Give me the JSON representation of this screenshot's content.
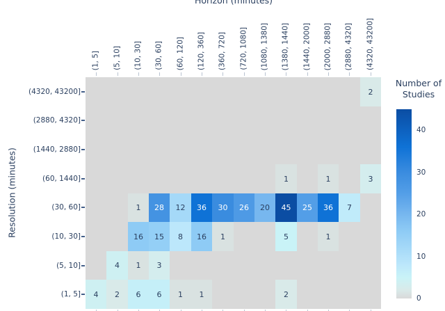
{
  "axes": {
    "x_title": "Horizon (minutes)",
    "y_title": "Resolution (minutes)"
  },
  "legend": {
    "title_line1": "Number of",
    "title_line2": "Studies",
    "ticks": [
      0,
      10,
      20,
      30,
      40
    ]
  },
  "colors": {
    "background": "#ffffff",
    "empty_cell": "#d9d9d9",
    "label_text": "#2a3f5f",
    "cell_text_dark": "#2a3f5f",
    "cell_text_light": "#ffffff",
    "heat_max": "#0b4da3"
  },
  "chart_data": {
    "type": "heatmap",
    "xlabel": "Horizon (minutes)",
    "ylabel": "Resolution (minutes)",
    "legend_title": "Number of Studies",
    "zmin": 0,
    "zmax": 45,
    "x_categories": [
      "(1, 5]",
      "(5, 10]",
      "(10, 30]",
      "(30, 60]",
      "(60, 120]",
      "(120, 360]",
      "(360, 720]",
      "(720, 1080]",
      "(1080, 1380]",
      "(1380, 1440]",
      "(1440, 2000]",
      "(2000, 2880]",
      "(2880, 4320]",
      "(4320, 43200]"
    ],
    "y_categories_top_to_bottom": [
      "(4320, 43200]",
      "(2880, 4320]",
      "(1440, 2880]",
      "(60, 1440]",
      "(30, 60]",
      "(10, 30]",
      "(5, 10]",
      "(1, 5]"
    ],
    "values": [
      [
        null,
        null,
        null,
        null,
        null,
        null,
        null,
        null,
        null,
        null,
        null,
        null,
        null,
        2
      ],
      [
        null,
        null,
        null,
        null,
        null,
        null,
        null,
        null,
        null,
        null,
        null,
        null,
        null,
        null
      ],
      [
        null,
        null,
        null,
        null,
        null,
        null,
        null,
        null,
        null,
        null,
        null,
        null,
        null,
        null
      ],
      [
        null,
        null,
        null,
        null,
        null,
        null,
        null,
        null,
        null,
        1,
        null,
        1,
        null,
        3
      ],
      [
        null,
        null,
        1,
        28,
        12,
        36,
        30,
        26,
        20,
        45,
        25,
        36,
        7,
        null
      ],
      [
        null,
        null,
        16,
        15,
        8,
        16,
        1,
        null,
        null,
        5,
        null,
        1,
        null,
        null
      ],
      [
        null,
        4,
        1,
        3,
        null,
        null,
        null,
        null,
        null,
        null,
        null,
        null,
        null,
        null
      ],
      [
        4,
        2,
        6,
        6,
        1,
        1,
        null,
        null,
        null,
        2,
        null,
        null,
        null,
        null
      ]
    ],
    "colorscale": [
      [
        0,
        "#d9d9d9"
      ],
      [
        2,
        "#d9eae9"
      ],
      [
        5,
        "#c9f3f7"
      ],
      [
        8,
        "#bce7fb"
      ],
      [
        12,
        "#a5d9f8"
      ],
      [
        16,
        "#8ecbf5"
      ],
      [
        20,
        "#77b7ef"
      ],
      [
        25,
        "#539ee7"
      ],
      [
        30,
        "#3a8cdf"
      ],
      [
        36,
        "#0f72d6"
      ],
      [
        45,
        "#0b4da3"
      ]
    ]
  }
}
